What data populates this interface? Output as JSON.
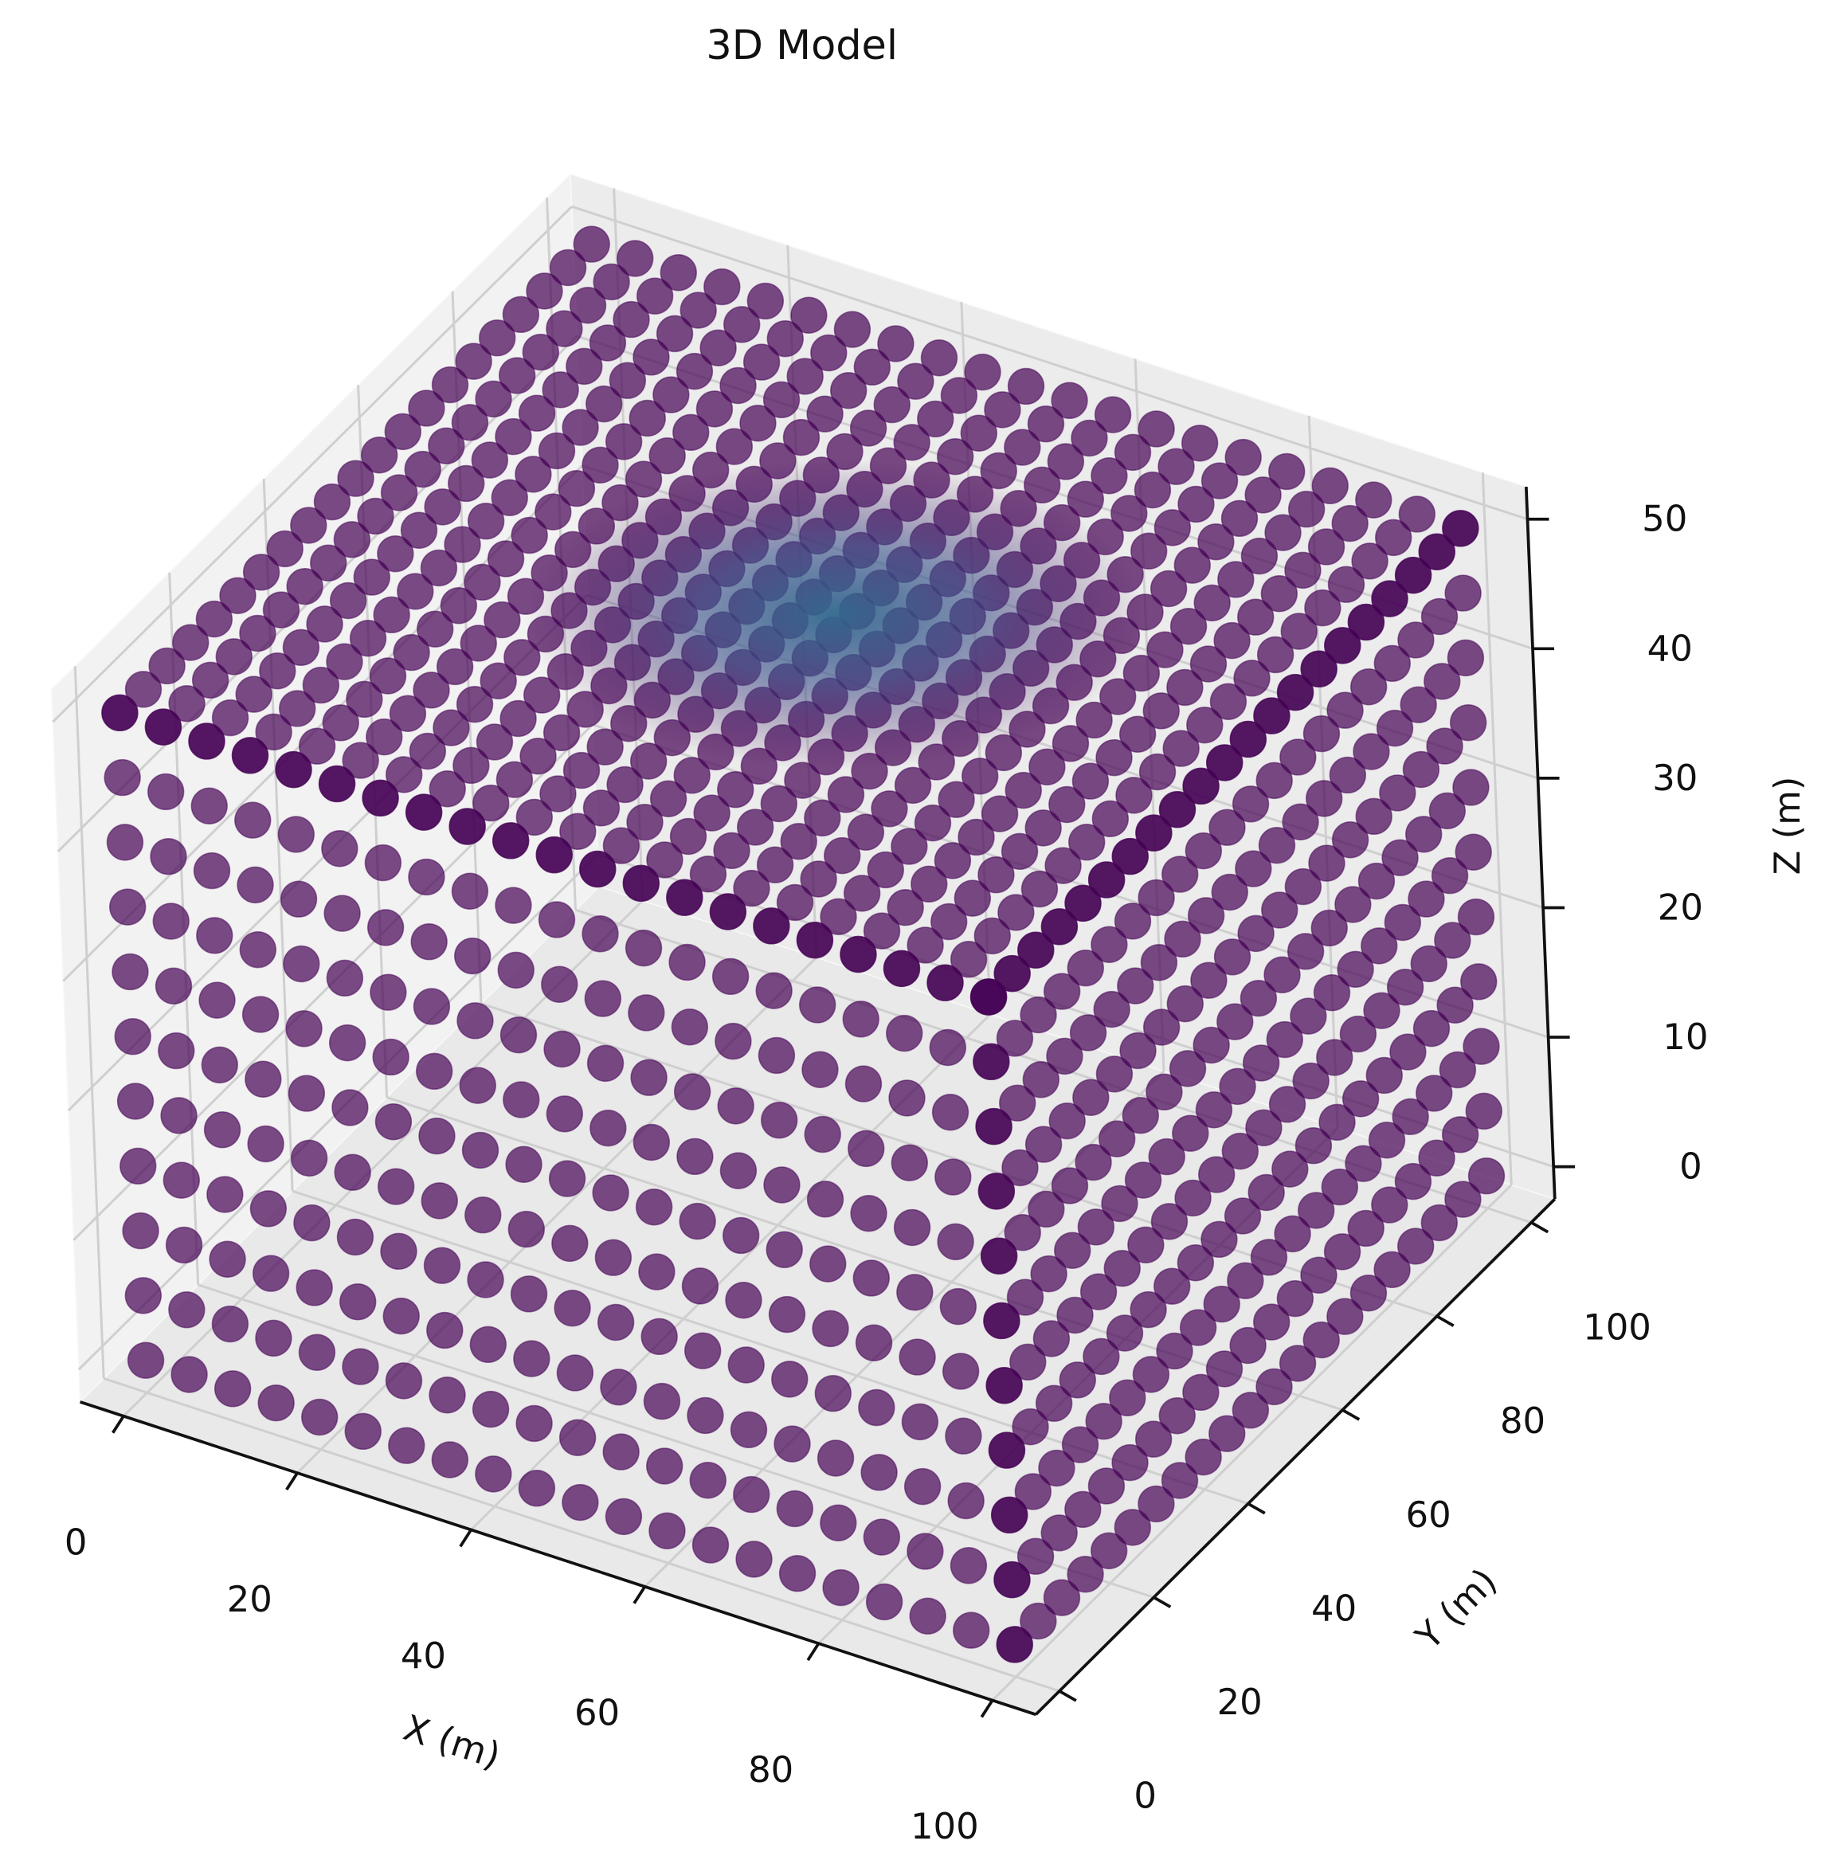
{
  "chart_data": {
    "type": "scatter3d",
    "title": "3D Model",
    "x_label": "X (m)",
    "y_label": "Y (m)",
    "z_label": "Z (m)",
    "x": [
      0,
      5,
      10,
      15,
      20,
      25,
      30,
      35,
      40,
      45,
      50,
      55,
      60,
      65,
      70,
      75,
      80,
      85,
      90,
      95,
      100
    ],
    "y": [
      0,
      5,
      10,
      15,
      20,
      25,
      30,
      35,
      40,
      45,
      50,
      55,
      60,
      65,
      70,
      75,
      80,
      85,
      90,
      95,
      100
    ],
    "z": [
      0,
      5,
      10,
      15,
      20,
      25,
      30,
      35,
      40,
      45,
      50
    ],
    "color": "#440154",
    "xlim": [
      -5,
      105
    ],
    "ylim": [
      -5,
      105
    ],
    "zlim": [
      -2.5,
      52.5
    ],
    "xticks": [
      0,
      20,
      40,
      60,
      80,
      100
    ],
    "yticks": [
      0,
      20,
      40,
      60,
      80,
      100
    ],
    "zticks": [
      0,
      10,
      20,
      30,
      40,
      50
    ],
    "grid": true
  }
}
